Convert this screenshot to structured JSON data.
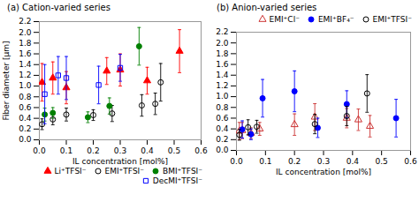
{
  "chart_data": [
    {
      "type": "scatter",
      "title": "(a) Cation-varied series",
      "xlabel": "IL concentration [mol%]",
      "ylabel": "Fiber diameter [μm]",
      "xlim": [
        0,
        0.6
      ],
      "ylim": [
        0,
        2.2
      ],
      "xticks": [
        {
          "value": 0,
          "label": "0.0"
        },
        0.1,
        0.2,
        0.3,
        0.4,
        0.5,
        0.6
      ],
      "yticks": [
        {
          "value": 0,
          "label": "0.0"
        },
        0.2,
        0.4,
        0.6,
        0.8,
        {
          "value": 1,
          "label": "1.0"
        },
        1.2,
        1.4,
        1.6,
        1.8,
        {
          "value": 2,
          "label": "2.0"
        },
        2.2
      ],
      "legend": "lower right",
      "series": [
        {
          "name": "Li⁺TFSI⁻",
          "color": "red",
          "marker": "triangle",
          "x": [
            0.01,
            0.05,
            0.1,
            0.25,
            0.3,
            0.4,
            0.52
          ],
          "values": [
            1.07,
            1.15,
            0.97,
            1.28,
            1.3,
            1.1,
            1.65
          ],
          "yerr": [
            0.35,
            0.3,
            0.3,
            0.25,
            0.3,
            0.25,
            0.4
          ]
        },
        {
          "name": "EMI⁺TFSI⁻",
          "color": "black",
          "marker": "circle-open",
          "x": [
            0.01,
            0.05,
            0.1,
            0.2,
            0.27,
            0.38,
            0.43,
            0.45
          ],
          "values": [
            0.29,
            0.38,
            0.47,
            0.46,
            0.49,
            0.64,
            0.67,
            1.07
          ],
          "yerr": [
            0.1,
            0.1,
            0.12,
            0.1,
            0.15,
            0.2,
            0.2,
            0.35
          ]
        },
        {
          "name": "BMI⁺TFSI⁻",
          "color": "green",
          "marker": "circle",
          "x": [
            0.02,
            0.05,
            0.18,
            0.26,
            0.37
          ],
          "values": [
            0.47,
            0.5,
            0.42,
            0.63,
            1.74
          ],
          "yerr": [
            0.12,
            0.1,
            0.1,
            0.15,
            0.35
          ]
        },
        {
          "name": "DecMI⁺TFSI⁻",
          "color": "blue",
          "marker": "square-open",
          "x": [
            0.02,
            0.07,
            0.1,
            0.22,
            0.3
          ],
          "values": [
            0.85,
            1.2,
            1.15,
            1.02,
            1.34
          ],
          "yerr": [
            0.55,
            0.35,
            0.4,
            0.35,
            0.25
          ]
        }
      ]
    },
    {
      "type": "scatter",
      "title": "(b) Anion-varied series",
      "xlabel": "IL concentration [mol%]",
      "xlim": [
        0,
        0.6
      ],
      "ylim": [
        0,
        2.2
      ],
      "xticks": [
        {
          "value": 0,
          "label": "0.0"
        },
        0.1,
        0.2,
        0.3,
        0.4,
        0.5,
        0.6
      ],
      "yticks": [
        {
          "value": 0,
          "label": "0.0"
        },
        0.2,
        0.4,
        0.6,
        0.8,
        {
          "value": 1,
          "label": "1.0"
        },
        1.2,
        1.4,
        1.6,
        1.8,
        {
          "value": 2,
          "label": "2.0"
        },
        2.2
      ],
      "legend": "upper right",
      "series": [
        {
          "name": "EMI⁺Cl⁻",
          "color": "#cc3333",
          "marker": "triangle-open",
          "x": [
            0.01,
            0.02,
            0.05,
            0.08,
            0.2,
            0.27,
            0.38,
            0.42,
            0.46
          ],
          "values": [
            0.36,
            0.37,
            0.32,
            0.4,
            0.48,
            0.62,
            0.6,
            0.57,
            0.45
          ],
          "yerr": [
            0.16,
            0.15,
            0.1,
            0.12,
            0.2,
            0.25,
            0.18,
            0.2,
            0.2
          ]
        },
        {
          "name": "EMI⁺BF₄⁻",
          "color": "blue",
          "marker": "circle",
          "x": [
            0.02,
            0.05,
            0.09,
            0.2,
            0.28,
            0.38,
            0.55
          ],
          "values": [
            0.39,
            0.3,
            0.97,
            1.1,
            0.42,
            0.86,
            0.6
          ],
          "yerr": [
            0.16,
            0.1,
            0.35,
            0.38,
            0.18,
            0.25,
            0.35
          ]
        },
        {
          "name": "EMI⁺TFSI⁻",
          "color": "black",
          "marker": "circle-open",
          "x": [
            0.01,
            0.04,
            0.07,
            0.27,
            0.38,
            0.45
          ],
          "values": [
            0.29,
            0.43,
            0.44,
            0.49,
            0.64,
            1.06
          ],
          "yerr": [
            0.1,
            0.14,
            0.12,
            0.18,
            0.18,
            0.35
          ]
        }
      ]
    }
  ]
}
